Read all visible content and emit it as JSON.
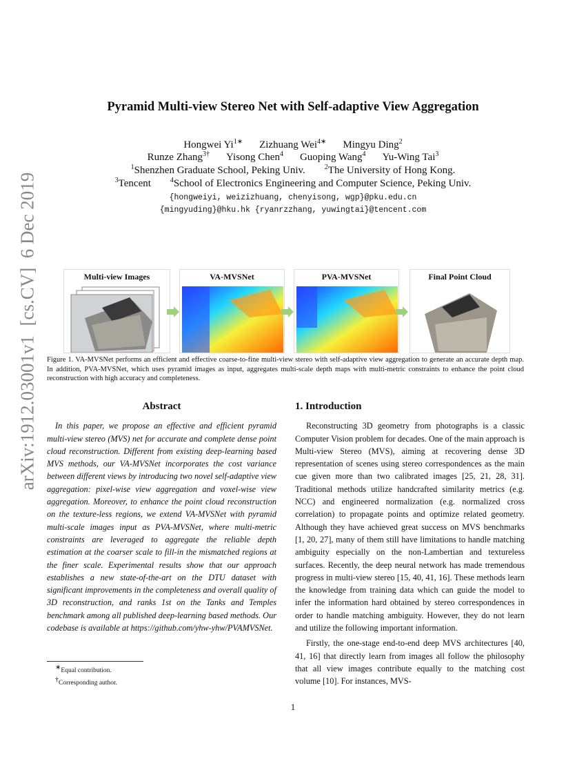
{
  "side_label": "arXiv:1912.03001v1  [cs.CV]  6 Dec 2019",
  "title": "Pyramid Multi-view Stereo Net with Self-adaptive View Aggregation",
  "authors": [
    [
      {
        "name": "Hongwei Yi",
        "mark": "1∗"
      },
      {
        "name": "Zizhuang Wei",
        "mark": "4∗"
      },
      {
        "name": "Mingyu Ding",
        "mark": "2"
      }
    ],
    [
      {
        "name": "Runze Zhang",
        "mark": "3†"
      },
      {
        "name": "Yisong Chen",
        "mark": "4"
      },
      {
        "name": "Guoping Wang",
        "mark": "4"
      },
      {
        "name": "Yu-Wing Tai",
        "mark": "3"
      }
    ]
  ],
  "affiliations": [
    [
      {
        "mark": "1",
        "text": "Shenzhen Graduate School, Peking Univ."
      },
      {
        "mark": "2",
        "text": "The University of Hong Kong."
      }
    ],
    [
      {
        "mark": "3",
        "text": "Tencent"
      },
      {
        "mark": "4",
        "text": "School of Electronics Engineering and Computer Science, Peking Univ."
      }
    ]
  ],
  "emails": [
    "{hongweiyi, weizizhuang, chenyisong, wgp}@pku.edu.cn",
    "{mingyuding}@hku.hk {ryanrzzhang, yuwingtai}@tencent.com"
  ],
  "figure": {
    "panels": [
      "Multi-view Images",
      "VA-MVSNet",
      "PVA-MVSNet",
      "Final Point Cloud"
    ],
    "caption": "Figure 1. VA-MVSNet performs an efficient and effective coarse-to-fine multi-view stereo with self-adaptive view aggregation to generate an accurate depth map. In addition, PVA-MVSNet, which uses pyramid images as input, aggregates multi-scale depth maps with multi-metric constraints to enhance the point cloud reconstruction with high accuracy and completeness."
  },
  "abstract": {
    "heading": "Abstract",
    "text": "In this paper, we propose an effective and efficient pyramid multi-view stereo (MVS) net for accurate and complete dense point cloud reconstruction. Different from existing deep-learning based MVS methods, our VA-MVSNet incorporates the cost variance between different views by introducing two novel self-adaptive view aggregation: pixel-wise view aggregation and voxel-wise view aggregation. Moreover, to enhance the point cloud reconstruction on the texture-less regions, we extend VA-MVSNet with pyramid multi-scale images input as PVA-MVSNet, where multi-metric constraints are leveraged to aggregate the reliable depth estimation at the coarser scale to fill-in the mismatched regions at the finer scale. Experimental results show that our approach establishes a new state-of-the-art on the DTU dataset with significant improvements in the completeness and overall quality of 3D reconstruction, and ranks 1st on the Tanks and Temples benchmark among all published deep-learning based methods. Our codebase is available at https://github.com/yhw-yhw/PVAMVSNet."
  },
  "footnotes": [
    {
      "mark": "∗",
      "text": "Equal contribution."
    },
    {
      "mark": "†",
      "text": "Corresponding author."
    }
  ],
  "introduction": {
    "heading": "1. Introduction",
    "paragraphs": [
      "Reconstructing 3D geometry from photographs is a classic Computer Vision problem for decades. One of the main approach is Multi-view Stereo (MVS), aiming at recovering dense 3D representation of scenes using stereo correspondences as the main cue given more than two calibrated images [25, 21, 28, 31]. Traditional methods utilize handcrafted similarity metrics (e.g. NCC) and engineered normalization (e.g. normalized cross correlation) to propagate points and optimize related geometry. Although they have achieved great success on MVS benchmarks [1, 20, 27], many of them still have limitations to handle matching ambiguity especially on the non-Lambertian and textureless surfaces. Recently, the deep neural network has made tremendous progress in multi-view stereo [15, 40, 41, 16]. These methods learn the knowledge from training data which can guide the model to infer the information hard obtained by stereo correspondences in order to handle matching ambiguity. However, they do not learn and utilize the following important information.",
      "Firstly, the one-stage end-to-end deep MVS architectures [40, 41, 16] that directly learn from images all follow the philosophy that all view images contribute equally to the matching cost volume [10]. For instances, MVS-"
    ]
  },
  "page_number": "1"
}
